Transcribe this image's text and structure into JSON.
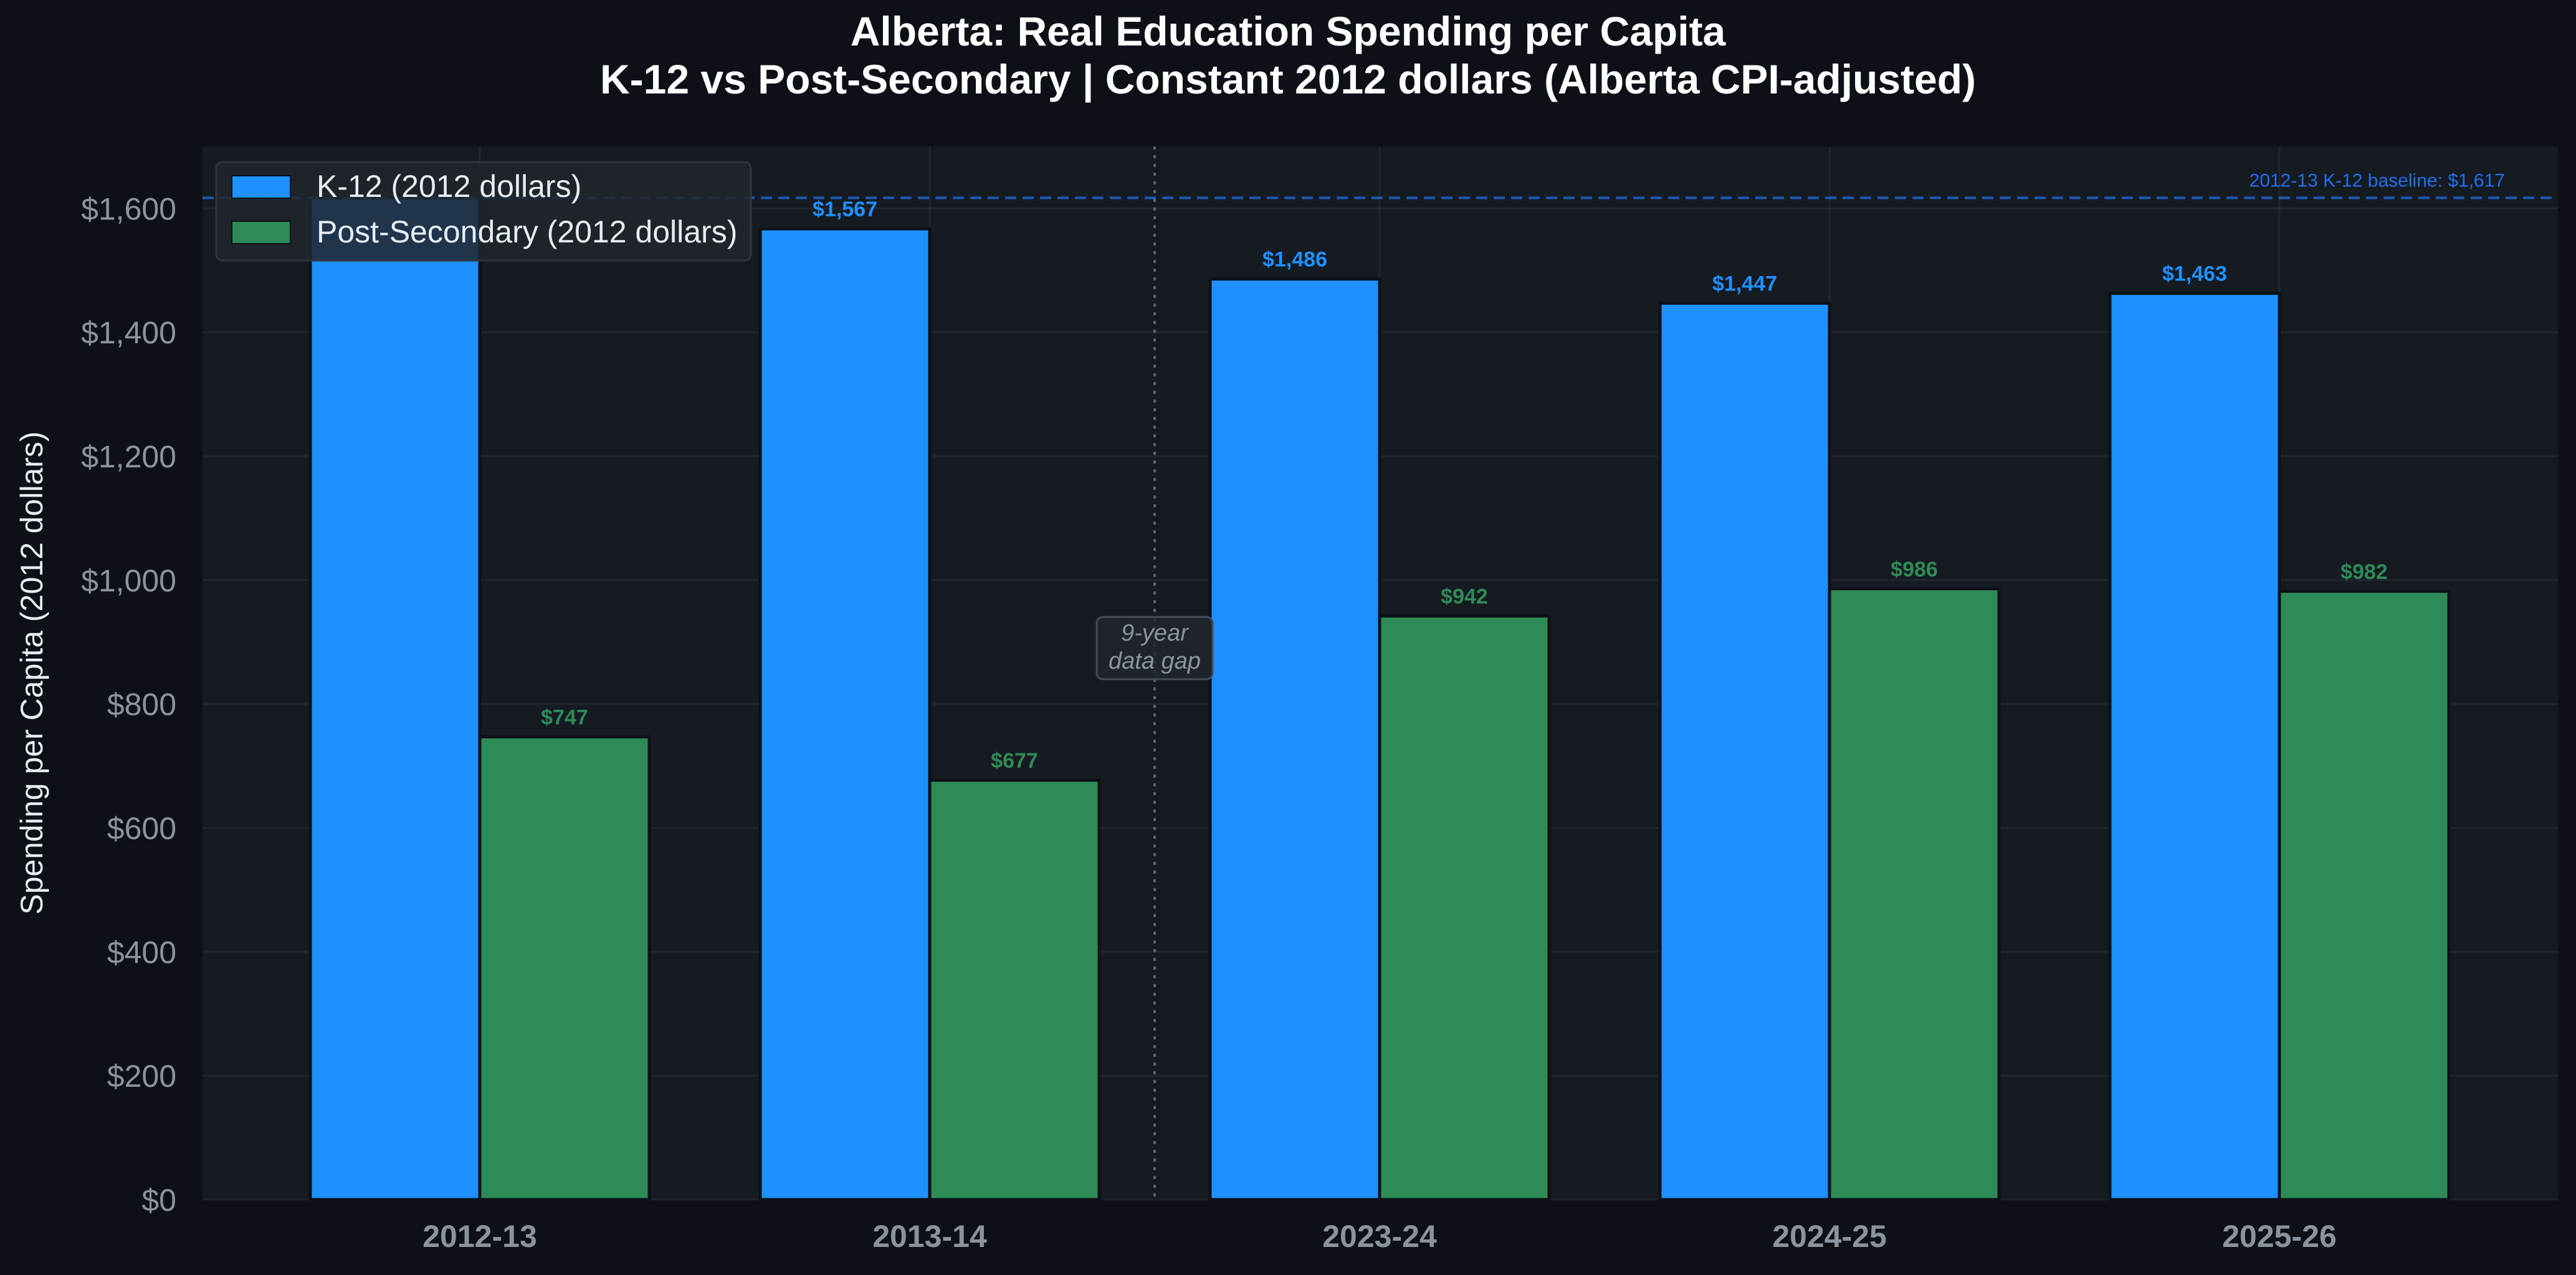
{
  "chart_data": {
    "type": "bar",
    "title_line1": "Alberta: Real Education Spending per Capita",
    "title_line2": "K-12 vs Post-Secondary  |  Constant 2012 dollars (Alberta CPI-adjusted)",
    "ylabel": "Spending per Capita (2012 dollars)",
    "xlabel": "",
    "categories": [
      "2012-13",
      "2013-14",
      "2023-24",
      "2024-25",
      "2025-26"
    ],
    "series": [
      {
        "name": "K-12 (2012 dollars)",
        "color": "#1e90ff",
        "values": [
          1617,
          1567,
          1486,
          1447,
          1463
        ],
        "labels": [
          "",
          "$1,567",
          "$1,486",
          "$1,447",
          "$1,463"
        ]
      },
      {
        "name": "Post-Secondary (2012 dollars)",
        "color": "#2e8b57",
        "values": [
          747,
          677,
          942,
          986,
          982
        ],
        "labels": [
          "$747",
          "$677",
          "$942",
          "$986",
          "$982"
        ]
      }
    ],
    "ylim": [
      0,
      1700
    ],
    "yticks": [
      0,
      200,
      400,
      600,
      800,
      1000,
      1200,
      1400,
      1600
    ],
    "ytick_labels": [
      "$0",
      "$200",
      "$400",
      "$600",
      "$800",
      "$1,000",
      "$1,200",
      "$1,400",
      "$1,600"
    ],
    "grid": true,
    "legend_position": "top-left",
    "baseline": {
      "value": 1617,
      "label": "2012-13 K-12 baseline: $1,617"
    },
    "annotation": {
      "line1": "9-year",
      "line2": "data gap"
    }
  }
}
